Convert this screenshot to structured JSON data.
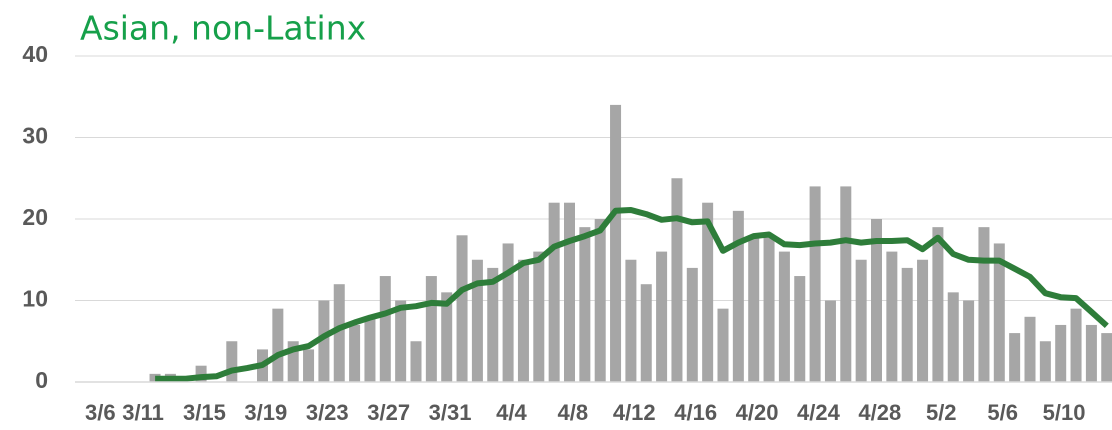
{
  "chart_data": {
    "type": "bar_line",
    "title": "Asian, non-Latinx",
    "categories": [
      "3/6",
      null,
      null,
      null,
      null,
      "3/11",
      null,
      null,
      null,
      "3/15",
      null,
      null,
      null,
      "3/19",
      null,
      null,
      null,
      "3/23",
      null,
      null,
      null,
      "3/27",
      null,
      null,
      null,
      "3/31",
      null,
      null,
      null,
      "4/4",
      null,
      null,
      null,
      "4/8",
      null,
      null,
      null,
      "4/12",
      null,
      null,
      null,
      "4/16",
      null,
      null,
      null,
      "4/20",
      null,
      null,
      null,
      "4/24",
      null,
      null,
      null,
      "4/28",
      null,
      null,
      null,
      "5/2",
      null,
      null,
      null,
      "5/6",
      null,
      null,
      null,
      "5/10",
      null,
      null
    ],
    "series": [
      {
        "type": "bar",
        "color": "#a6a6a6",
        "values": [
          null,
          null,
          null,
          null,
          null,
          1,
          1,
          0,
          2,
          0,
          5,
          0,
          4,
          9,
          5,
          4,
          10,
          12,
          7,
          8,
          13,
          10,
          5,
          13,
          11,
          18,
          15,
          14,
          17,
          15,
          16,
          22,
          22,
          19,
          20,
          34,
          15,
          12,
          16,
          25,
          14,
          22,
          9,
          21,
          18,
          18,
          16,
          13,
          24,
          10,
          24,
          15,
          20,
          16,
          14,
          15,
          19,
          11,
          10,
          19,
          17,
          6,
          8,
          5,
          7,
          9,
          7,
          6
        ]
      },
      {
        "type": "line",
        "color": "#2e7d3a",
        "values": [
          null,
          null,
          null,
          null,
          null,
          0.4,
          0.4,
          0.4,
          0.6,
          0.7,
          1.4,
          1.7,
          2.1,
          3.3,
          4,
          4.4,
          5.6,
          6.6,
          7.3,
          7.9,
          8.4,
          9.1,
          9.3,
          9.7,
          9.6,
          11.3,
          12.1,
          12.3,
          13.4,
          14.6,
          15,
          16.6,
          17.3,
          17.9,
          18.6,
          21,
          21.1,
          20.6,
          19.9,
          20.1,
          19.6,
          19.7,
          16.1,
          17.1,
          17.9,
          18.1,
          16.9,
          16.8,
          17,
          17.1,
          17.4,
          17.1,
          17.3,
          17.3,
          17.4,
          16.3,
          17.7,
          15.7,
          15,
          14.9,
          14.9,
          13.9,
          12.9,
          10.9,
          10.4,
          10.3,
          8.6,
          6.9
        ]
      }
    ],
    "ylim": [
      0,
      40
    ],
    "yticks": [
      0,
      10,
      20,
      30,
      40
    ],
    "grid": true
  }
}
